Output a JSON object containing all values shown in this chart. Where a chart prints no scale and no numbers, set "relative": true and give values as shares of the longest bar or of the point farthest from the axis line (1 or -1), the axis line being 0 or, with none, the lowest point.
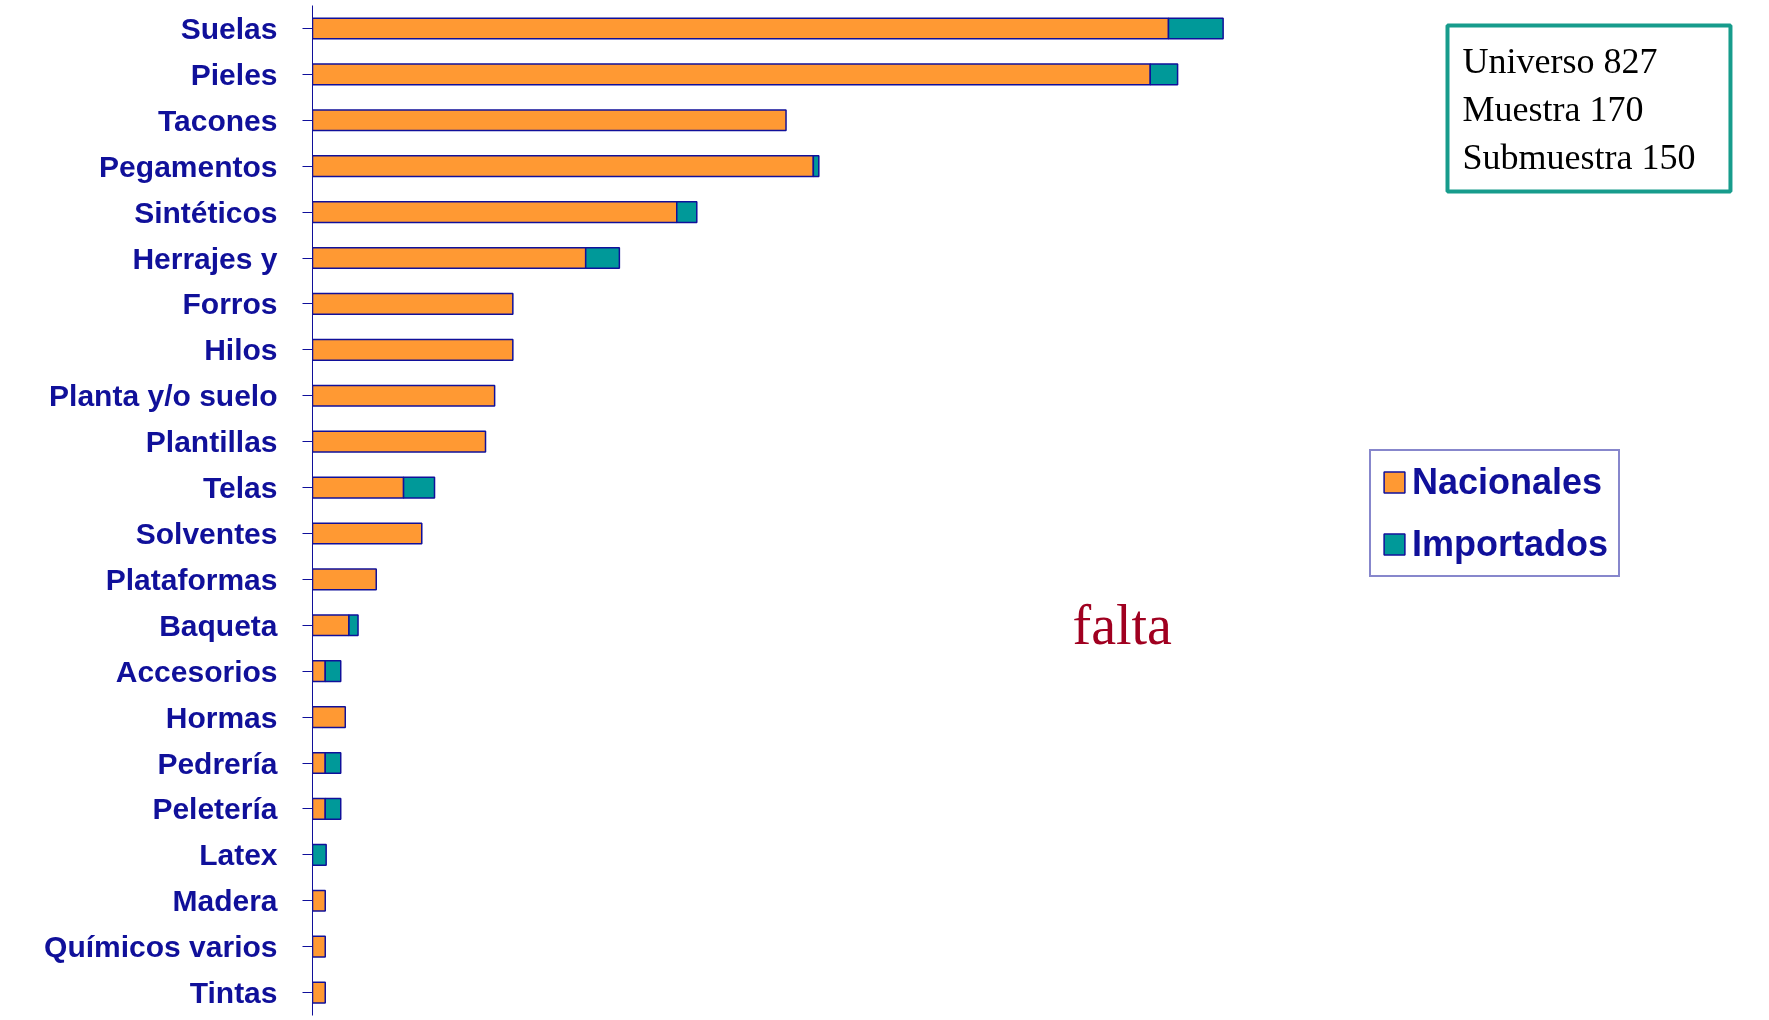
{
  "chart_data": {
    "type": "bar",
    "orientation": "horizontal",
    "stacked": true,
    "relative": true,
    "grid": false,
    "legend": "right",
    "categories": [
      "Suelas",
      "Pieles",
      "Tacones",
      "Pegamentos",
      "Sintéticos",
      "Herrajes y",
      "Forros",
      "Hilos",
      "Planta y/o suelo",
      "Plantillas",
      "Telas",
      "Solventes",
      "Plataformas",
      "Baqueta",
      "Accesorios",
      "Hormas",
      "Pedrería",
      "Peletería",
      "Latex",
      "Madera",
      "Químicos varios",
      "Tintas"
    ],
    "series": [
      {
        "name": "Nacionales",
        "color": "#ff9933",
        "values": [
          0.94,
          0.92,
          0.52,
          0.55,
          0.4,
          0.3,
          0.22,
          0.22,
          0.2,
          0.19,
          0.1,
          0.12,
          0.07,
          0.04,
          0.014,
          0.036,
          0.014,
          0.014,
          null,
          0.014,
          0.014,
          0.014
        ]
      },
      {
        "name": "Importados",
        "color": "#009999",
        "values": [
          0.06,
          0.03,
          null,
          0.006,
          0.022,
          0.037,
          null,
          null,
          null,
          null,
          0.034,
          null,
          null,
          0.01,
          0.017,
          null,
          0.017,
          0.017,
          0.015,
          null,
          null,
          null
        ]
      }
    ],
    "annotations": [
      "Universo      827",
      "Muestra         170",
      "Submuestra  150",
      "falta"
    ]
  }
}
